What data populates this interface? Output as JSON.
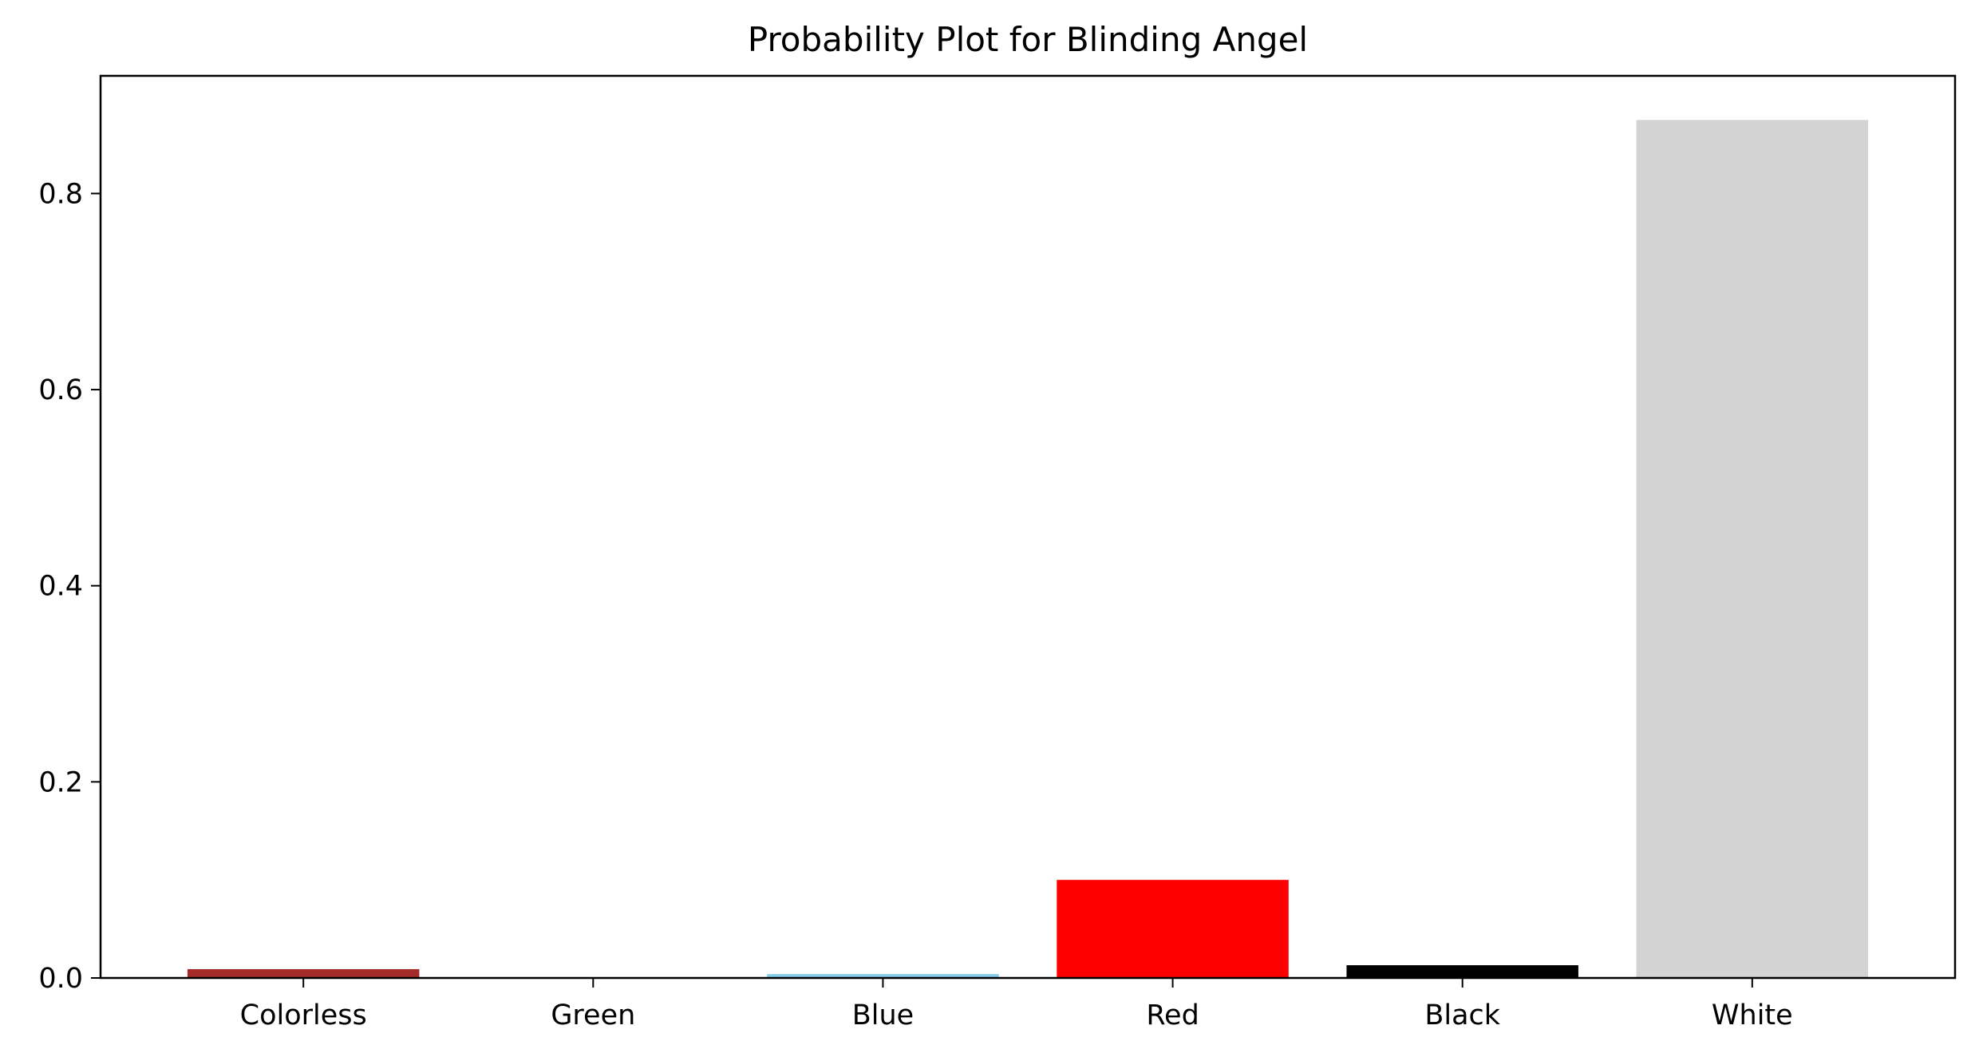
{
  "chart_data": {
    "type": "bar",
    "title": "Probability Plot for Blinding Angel",
    "xlabel": "",
    "ylabel": "",
    "categories": [
      "Colorless",
      "Green",
      "Blue",
      "Red",
      "Black",
      "White"
    ],
    "values": [
      0.009,
      0.0005,
      0.004,
      0.1,
      0.013,
      0.875
    ],
    "colors": [
      "#a52a2a",
      "#008000",
      "#87ceeb",
      "#ff0000",
      "#000000",
      "#d3d3d3"
    ],
    "ylim": [
      0,
      0.92
    ],
    "yticks": [
      0.0,
      0.2,
      0.4,
      0.6,
      0.8
    ],
    "ytick_labels": [
      "0.0",
      "0.2",
      "0.4",
      "0.6",
      "0.8"
    ],
    "grid": false,
    "legend": "none"
  }
}
